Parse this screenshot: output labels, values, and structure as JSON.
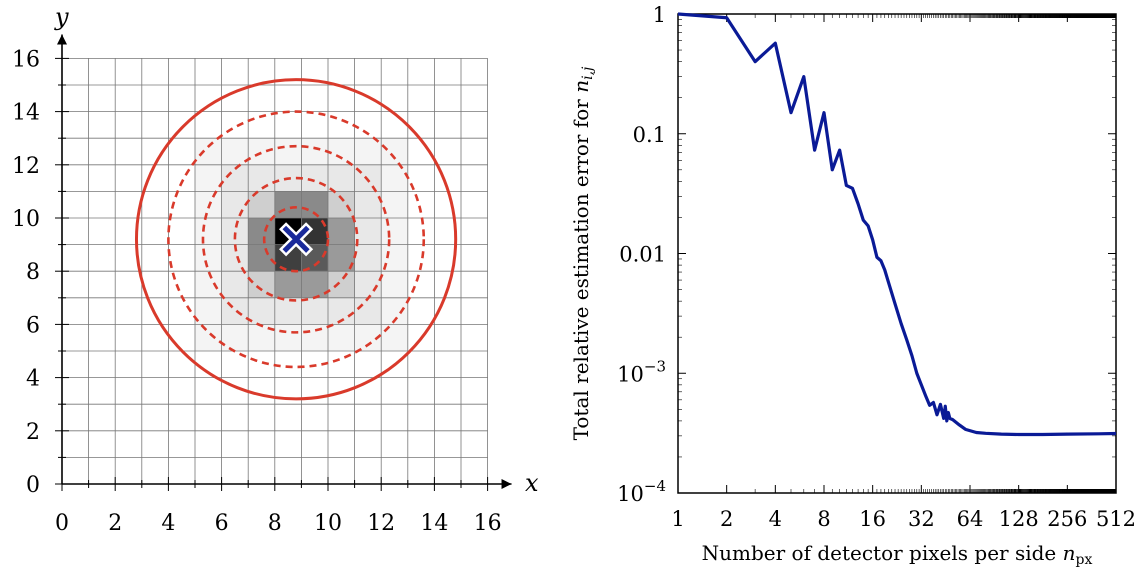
{
  "chart_data": [
    {
      "type": "diagram-grid",
      "xlabel": "x",
      "ylabel": "y",
      "xlim": [
        0,
        16
      ],
      "ylim": [
        0,
        16
      ],
      "x_ticks": [
        "0",
        "2",
        "4",
        "6",
        "8",
        "10",
        "12",
        "14",
        "16"
      ],
      "y_ticks": [
        "0",
        "2",
        "4",
        "6",
        "8",
        "10",
        "12",
        "14",
        "16"
      ],
      "grid_step": 1,
      "center": [
        8.8,
        9.2
      ],
      "solid_circle_radius": 6.0,
      "dashed_circle_radii": [
        1.2,
        2.3,
        3.5,
        4.8
      ],
      "pixels": [
        {
          "x": 5,
          "y": 5,
          "w": 8,
          "h": 8,
          "color": "#f4f4f4"
        },
        {
          "x": 6,
          "y": 6,
          "w": 6,
          "h": 6,
          "color": "#e8e8e8"
        },
        {
          "x": 7,
          "y": 7,
          "w": 4,
          "h": 4,
          "color": "#cfcfcf"
        },
        {
          "x": 7,
          "y": 8,
          "w": 1,
          "h": 2,
          "color": "#8a8a8a"
        },
        {
          "x": 10,
          "y": 8,
          "w": 1,
          "h": 2,
          "color": "#9a9a9a"
        },
        {
          "x": 8,
          "y": 10,
          "w": 2,
          "h": 1,
          "color": "#8a8a8a"
        },
        {
          "x": 8,
          "y": 7,
          "w": 2,
          "h": 1,
          "color": "#9a9a9a"
        },
        {
          "x": 8,
          "y": 8,
          "w": 1,
          "h": 1,
          "color": "#3f3f3f"
        },
        {
          "x": 9,
          "y": 8,
          "w": 1,
          "h": 1,
          "color": "#5a5a5a"
        },
        {
          "x": 8,
          "y": 9,
          "w": 1,
          "h": 1,
          "color": "#000000"
        },
        {
          "x": 9,
          "y": 9,
          "w": 1,
          "h": 1,
          "color": "#333333"
        }
      ],
      "colors": {
        "circle": "#d93a2b",
        "marker": "#1a2a9a",
        "grid": "#777777"
      }
    },
    {
      "type": "line",
      "x_scale": "log2",
      "y_scale": "log",
      "xlabel_prefix": "Number of detector pixels per side ",
      "xlabel_var": "n",
      "xlabel_sub": "px",
      "ylabel_prefix": "Total relative estimation error for ",
      "ylabel_var": "n",
      "ylabel_sub": "i,j",
      "xlim": [
        1,
        512
      ],
      "ylim": [
        0.0001,
        1
      ],
      "x_ticks": [
        "1",
        "2",
        "4",
        "8",
        "16",
        "32",
        "64",
        "128",
        "256",
        "512"
      ],
      "y_ticks": [
        {
          "value": 1,
          "label": "1"
        },
        {
          "value": 0.1,
          "label": "0.1"
        },
        {
          "value": 0.01,
          "label": "0.01"
        },
        {
          "value": 0.001,
          "base": "10",
          "exp": "−3"
        },
        {
          "value": 0.0001,
          "base": "10",
          "exp": "−4"
        }
      ],
      "series": [
        {
          "color": "#0a1a96",
          "x": [
            1,
            2,
            3,
            4,
            5,
            6,
            7,
            8,
            9,
            10,
            11,
            12,
            13,
            14,
            15,
            16,
            17,
            18,
            19,
            20,
            22,
            24,
            26,
            28,
            30,
            32,
            34,
            36,
            38,
            40,
            42,
            44,
            45,
            46,
            47,
            48,
            50,
            55,
            60,
            70,
            80,
            100,
            128,
            180,
            256,
            400,
            512
          ],
          "y": [
            1,
            0.93,
            0.4,
            0.57,
            0.15,
            0.3,
            0.073,
            0.15,
            0.05,
            0.073,
            0.037,
            0.035,
            0.026,
            0.019,
            0.017,
            0.013,
            0.0093,
            0.0087,
            0.0073,
            0.0058,
            0.0038,
            0.0026,
            0.0019,
            0.0014,
            0.001,
            0.0008,
            0.00065,
            0.00054,
            0.00057,
            0.00045,
            0.00055,
            0.00042,
            0.00053,
            0.0004,
            0.00047,
            0.00042,
            0.00041,
            0.00037,
            0.00034,
            0.00032,
            0.000315,
            0.00031,
            0.000308,
            0.000308,
            0.00031,
            0.000312,
            0.000314
          ]
        }
      ]
    }
  ]
}
